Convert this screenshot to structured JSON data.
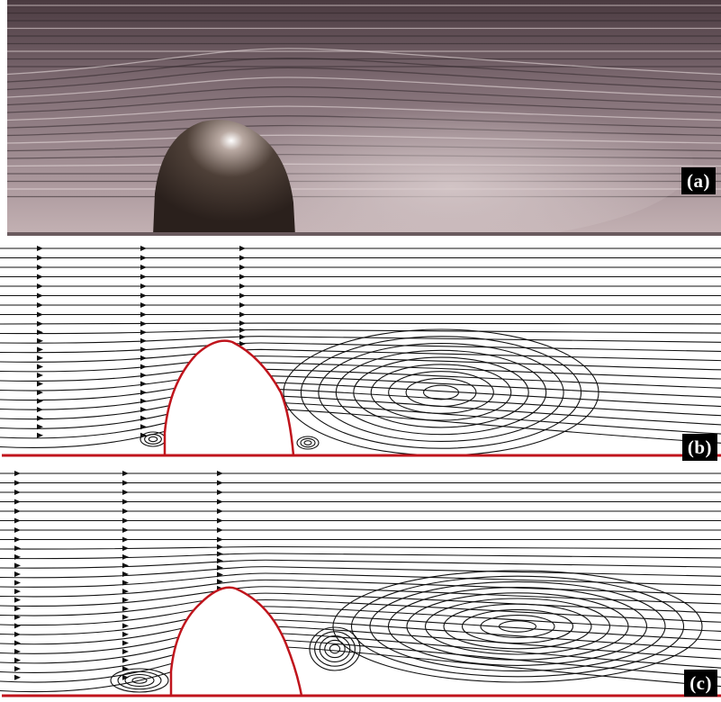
{
  "panels": [
    {
      "id": "a",
      "label": "(a)"
    },
    {
      "id": "b",
      "label": "(b)"
    },
    {
      "id": "c",
      "label": "(c)"
    }
  ],
  "colors": {
    "photo_background": "#8a7a80",
    "streamline": "#111111",
    "obstacle_outline": "#c0141c",
    "label_background": "#000000",
    "label_text": "#ffffff"
  }
}
